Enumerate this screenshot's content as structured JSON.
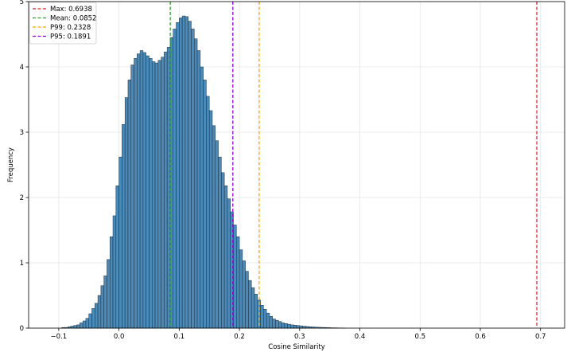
{
  "chart_data": {
    "type": "bar",
    "title": "",
    "xlabel": "Cosine Similarity",
    "ylabel": "Frequency",
    "xlim": [
      -0.15,
      0.74
    ],
    "ylim": [
      0,
      5
    ],
    "xticks": [
      -0.1,
      0.0,
      0.1,
      0.2,
      0.3,
      0.4,
      0.5,
      0.6,
      0.7
    ],
    "xtick_labels": [
      "−0.1",
      "0.0",
      "0.1",
      "0.2",
      "0.3",
      "0.4",
      "0.5",
      "0.6",
      "0.7"
    ],
    "yticks": [
      0,
      1,
      2,
      3,
      4,
      5
    ],
    "ytick_labels": [
      "0",
      "1",
      "2",
      "3",
      "4",
      "5"
    ],
    "grid": true,
    "legend_position": "top-left",
    "bar_color": "#4a8ab8",
    "bar_edge_color": "#1f2d3d",
    "bin_width": 0.005,
    "bins": [
      [
        -0.1,
        0.0
      ],
      [
        -0.095,
        0.01
      ],
      [
        -0.09,
        0.01
      ],
      [
        -0.085,
        0.02
      ],
      [
        -0.08,
        0.03
      ],
      [
        -0.075,
        0.04
      ],
      [
        -0.07,
        0.05
      ],
      [
        -0.065,
        0.08
      ],
      [
        -0.06,
        0.11
      ],
      [
        -0.055,
        0.15
      ],
      [
        -0.05,
        0.22
      ],
      [
        -0.045,
        0.3
      ],
      [
        -0.04,
        0.38
      ],
      [
        -0.035,
        0.5
      ],
      [
        -0.03,
        0.65
      ],
      [
        -0.025,
        0.8
      ],
      [
        -0.02,
        1.05
      ],
      [
        -0.015,
        1.4
      ],
      [
        -0.01,
        1.72
      ],
      [
        -0.005,
        2.18
      ],
      [
        0.0,
        2.62
      ],
      [
        0.005,
        3.12
      ],
      [
        0.01,
        3.53
      ],
      [
        0.015,
        3.8
      ],
      [
        0.02,
        4.03
      ],
      [
        0.025,
        4.13
      ],
      [
        0.03,
        4.2
      ],
      [
        0.035,
        4.25
      ],
      [
        0.04,
        4.22
      ],
      [
        0.045,
        4.17
      ],
      [
        0.05,
        4.13
      ],
      [
        0.055,
        4.08
      ],
      [
        0.06,
        4.06
      ],
      [
        0.065,
        4.1
      ],
      [
        0.07,
        4.15
      ],
      [
        0.075,
        4.23
      ],
      [
        0.08,
        4.3
      ],
      [
        0.085,
        4.45
      ],
      [
        0.09,
        4.58
      ],
      [
        0.095,
        4.68
      ],
      [
        0.1,
        4.75
      ],
      [
        0.105,
        4.78
      ],
      [
        0.11,
        4.77
      ],
      [
        0.115,
        4.7
      ],
      [
        0.12,
        4.58
      ],
      [
        0.125,
        4.43
      ],
      [
        0.13,
        4.25
      ],
      [
        0.135,
        4.0
      ],
      [
        0.14,
        3.8
      ],
      [
        0.145,
        3.55
      ],
      [
        0.15,
        3.33
      ],
      [
        0.155,
        3.1
      ],
      [
        0.16,
        2.87
      ],
      [
        0.165,
        2.62
      ],
      [
        0.17,
        2.38
      ],
      [
        0.175,
        2.18
      ],
      [
        0.18,
        1.98
      ],
      [
        0.185,
        1.78
      ],
      [
        0.19,
        1.58
      ],
      [
        0.195,
        1.4
      ],
      [
        0.2,
        1.2
      ],
      [
        0.205,
        1.03
      ],
      [
        0.21,
        0.87
      ],
      [
        0.215,
        0.73
      ],
      [
        0.22,
        0.62
      ],
      [
        0.225,
        0.52
      ],
      [
        0.23,
        0.43
      ],
      [
        0.235,
        0.35
      ],
      [
        0.24,
        0.29
      ],
      [
        0.245,
        0.23
      ],
      [
        0.25,
        0.18
      ],
      [
        0.255,
        0.14
      ],
      [
        0.26,
        0.12
      ],
      [
        0.265,
        0.1
      ],
      [
        0.27,
        0.08
      ],
      [
        0.275,
        0.07
      ],
      [
        0.28,
        0.06
      ],
      [
        0.285,
        0.05
      ],
      [
        0.29,
        0.045
      ],
      [
        0.295,
        0.04
      ],
      [
        0.3,
        0.035
      ],
      [
        0.305,
        0.03
      ],
      [
        0.31,
        0.025
      ],
      [
        0.315,
        0.02
      ],
      [
        0.32,
        0.018
      ],
      [
        0.325,
        0.015
      ],
      [
        0.33,
        0.013
      ],
      [
        0.335,
        0.011
      ],
      [
        0.34,
        0.01
      ],
      [
        0.345,
        0.008
      ],
      [
        0.35,
        0.006
      ],
      [
        0.355,
        0.005
      ],
      [
        0.36,
        0.004
      ],
      [
        0.365,
        0.003
      ],
      [
        0.37,
        0.002
      ]
    ],
    "vlines": [
      {
        "label": "Max: 0.6938",
        "x": 0.6938,
        "color": "#d62728"
      },
      {
        "label": "Mean: 0.0852",
        "x": 0.0852,
        "color": "#2ca02c"
      },
      {
        "label": "P99: 0.2328",
        "x": 0.2328,
        "color": "#ffa500"
      },
      {
        "label": "P95: 0.1891",
        "x": 0.1891,
        "color": "#9400d3"
      }
    ]
  }
}
